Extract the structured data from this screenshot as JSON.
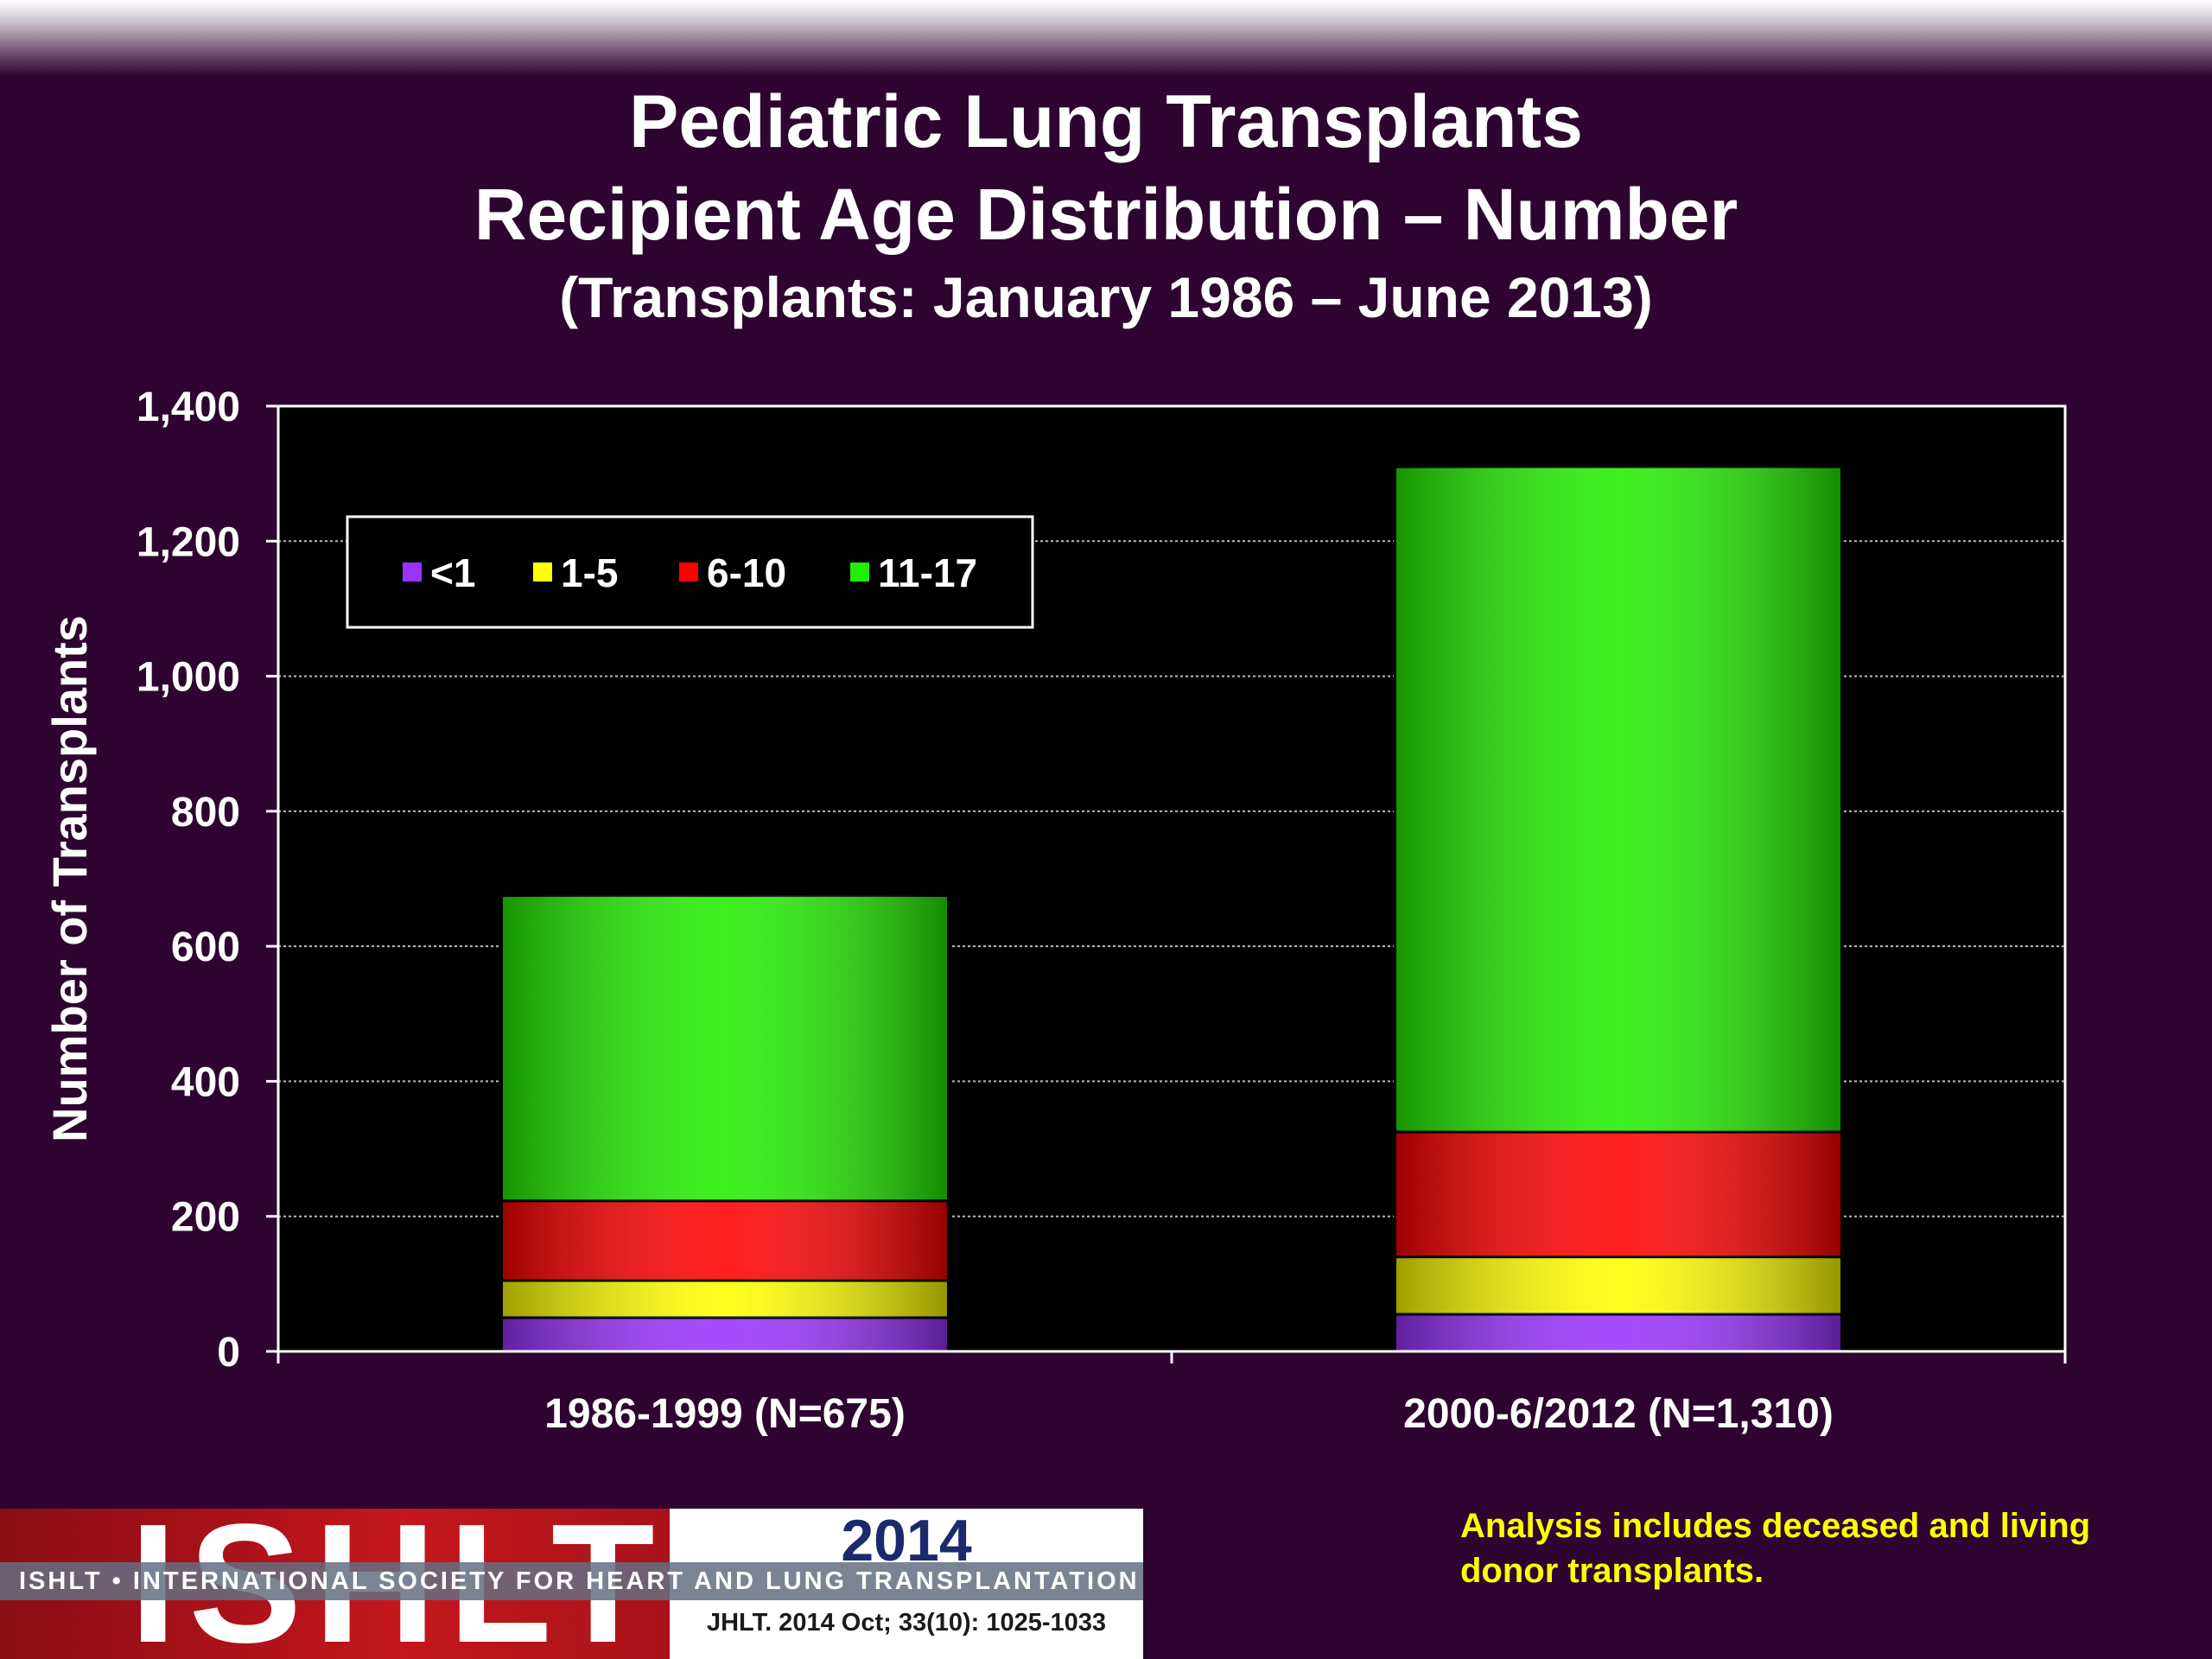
{
  "header": {
    "title": "Pediatric Lung Transplants",
    "subtitle": "Recipient Age Distribution – Number",
    "subtitle2": "(Transplants: January 1986 – June 2013)"
  },
  "chart_data": {
    "type": "bar",
    "stacked": true,
    "categories": [
      "1986-1999 (N=675)",
      "2000-6/2012 (N=1,310)"
    ],
    "series": [
      {
        "name": "<1",
        "color": "#9933ff",
        "values": [
          50,
          55
        ]
      },
      {
        "name": "1-5",
        "color": "#ffff00",
        "values": [
          55,
          85
        ]
      },
      {
        "name": "6-10",
        "color": "#ff0000",
        "values": [
          118,
          185
        ]
      },
      {
        "name": "11-17",
        "color": "#22ee00",
        "values": [
          452,
          985
        ]
      }
    ],
    "ylabel": "Number of Transplants",
    "xlabel": "",
    "ylim": [
      0,
      1400
    ],
    "yticks": [
      0,
      200,
      400,
      600,
      800,
      1000,
      1200,
      1400
    ],
    "ytick_labels": [
      "0",
      "200",
      "400",
      "600",
      "800",
      "1,000",
      "1,200",
      "1,400"
    ],
    "grid": true,
    "legend_position": "top-left",
    "plot_background": "#000000"
  },
  "footnote": "Analysis includes deceased and living donor transplants.",
  "logo": {
    "letters": "ISHLT",
    "year": "2014",
    "society": "ISHLT • INTERNATIONAL SOCIETY FOR HEART AND LUNG TRANSPLANTATION",
    "citation": "JHLT. 2014 Oct; 33(10): 1025-1033"
  }
}
